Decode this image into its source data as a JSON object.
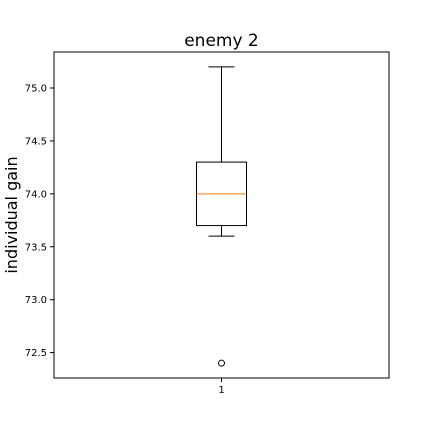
{
  "chart_data": {
    "type": "boxplot",
    "title": "enemy 2",
    "xlabel": "",
    "ylabel": "individual gain",
    "categories": [
      "1"
    ],
    "ylim": [
      72.26,
      75.34
    ],
    "yticks": [
      72.5,
      73.0,
      73.5,
      74.0,
      74.5,
      75.0
    ],
    "ytick_labels": [
      "72.5",
      "73.0",
      "73.5",
      "74.0",
      "74.5",
      "75.0"
    ],
    "grid": false,
    "boxes": [
      {
        "category": "1",
        "whisker_low": 73.6,
        "q1": 73.7,
        "median": 74.0,
        "q3": 74.3,
        "whisker_high": 75.2,
        "outliers": [
          72.4
        ]
      }
    ],
    "colors": {
      "box": "#000000",
      "median": "#ff7f0e",
      "frame": "#000000"
    }
  }
}
